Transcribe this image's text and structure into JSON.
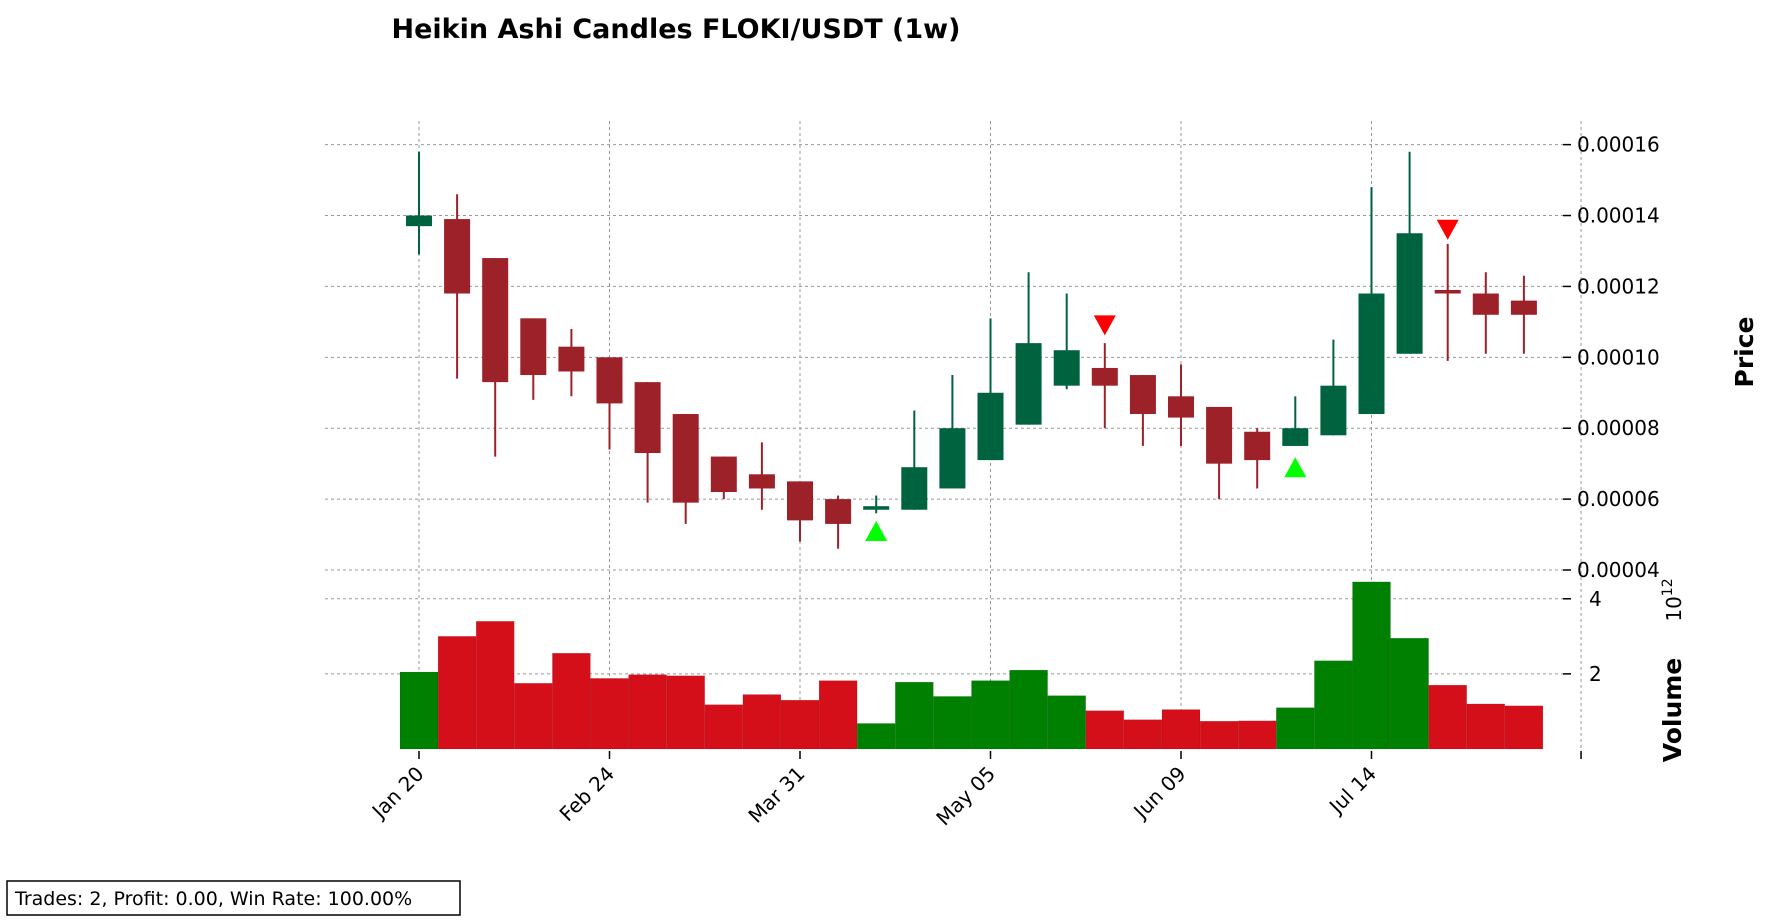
{
  "chart_data": {
    "type": "candlestick",
    "title": "Heikin Ashi Candles FLOKI/USDT (1w)",
    "price_label": "Price",
    "volume_label": "Volume",
    "volume_exponent": "10",
    "volume_exponent_power": "12",
    "x_ticks": [
      "Jan 20",
      "Feb 24",
      "Mar 31",
      "May 05",
      "Jun 09",
      "Jul 14"
    ],
    "x_tick_index": [
      0,
      5,
      10,
      15,
      20,
      25
    ],
    "price_ticks": [
      "0.00004",
      "0.00006",
      "0.00008",
      "0.00010",
      "0.00012",
      "0.00014",
      "0.00016"
    ],
    "price_ylim": [
      4e-05,
      0.000163
    ],
    "volume_ticks": [
      "2",
      "4"
    ],
    "volume_ylim": [
      0,
      4.5
    ],
    "grid": true,
    "colors": {
      "up": "#006340",
      "down": "#9c2129",
      "volume_up": "#008000",
      "volume_down": "#d40f1a",
      "buy_marker": "#00ff00",
      "sell_marker": "#ff0000"
    },
    "candles": [
      {
        "o": 0.000137,
        "h": 0.000158,
        "l": 0.000129,
        "c": 0.00014,
        "v": 2.05
      },
      {
        "o": 0.000139,
        "h": 0.000146,
        "l": 9.4e-05,
        "c": 0.000118,
        "v": 3.0
      },
      {
        "o": 0.000128,
        "h": 0.000128,
        "l": 7.2e-05,
        "c": 9.3e-05,
        "v": 3.4
      },
      {
        "o": 0.000111,
        "h": 0.000111,
        "l": 8.8e-05,
        "c": 9.5e-05,
        "v": 1.75
      },
      {
        "o": 0.000103,
        "h": 0.000108,
        "l": 8.9e-05,
        "c": 9.6e-05,
        "v": 2.55
      },
      {
        "o": 0.0001,
        "h": 0.0001,
        "l": 7.4e-05,
        "c": 8.7e-05,
        "v": 1.88
      },
      {
        "o": 9.3e-05,
        "h": 9.3e-05,
        "l": 5.9e-05,
        "c": 7.3e-05,
        "v": 1.98
      },
      {
        "o": 8.4e-05,
        "h": 8.4e-05,
        "l": 5.3e-05,
        "c": 5.9e-05,
        "v": 1.95
      },
      {
        "o": 7.2e-05,
        "h": 7.2e-05,
        "l": 6e-05,
        "c": 6.2e-05,
        "v": 1.18
      },
      {
        "o": 6.7e-05,
        "h": 7.6e-05,
        "l": 5.7e-05,
        "c": 6.3e-05,
        "v": 1.45
      },
      {
        "o": 6.5e-05,
        "h": 6.5e-05,
        "l": 4.8e-05,
        "c": 5.4e-05,
        "v": 1.3
      },
      {
        "o": 6e-05,
        "h": 6.1e-05,
        "l": 4.6e-05,
        "c": 5.3e-05,
        "v": 1.82
      },
      {
        "o": 5.7e-05,
        "h": 6.1e-05,
        "l": 5.6e-05,
        "c": 5.8e-05,
        "v": 0.68
      },
      {
        "o": 5.7e-05,
        "h": 8.5e-05,
        "l": 5.7e-05,
        "c": 6.9e-05,
        "v": 1.78
      },
      {
        "o": 6.3e-05,
        "h": 9.5e-05,
        "l": 6.3e-05,
        "c": 8e-05,
        "v": 1.4
      },
      {
        "o": 7.1e-05,
        "h": 0.000111,
        "l": 7.1e-05,
        "c": 9e-05,
        "v": 1.82
      },
      {
        "o": 8.1e-05,
        "h": 0.000124,
        "l": 8.1e-05,
        "c": 0.000104,
        "v": 2.1
      },
      {
        "o": 9.2e-05,
        "h": 0.000118,
        "l": 9.1e-05,
        "c": 0.000102,
        "v": 1.42
      },
      {
        "o": 9.7e-05,
        "h": 0.000104,
        "l": 8e-05,
        "c": 9.2e-05,
        "v": 1.02
      },
      {
        "o": 9.5e-05,
        "h": 9.5e-05,
        "l": 7.5e-05,
        "c": 8.4e-05,
        "v": 0.78
      },
      {
        "o": 8.9e-05,
        "h": 9.8e-05,
        "l": 7.5e-05,
        "c": 8.3e-05,
        "v": 1.05
      },
      {
        "o": 8.6e-05,
        "h": 8.6e-05,
        "l": 6e-05,
        "c": 7e-05,
        "v": 0.74
      },
      {
        "o": 7.9e-05,
        "h": 8e-05,
        "l": 6.3e-05,
        "c": 7.1e-05,
        "v": 0.75
      },
      {
        "o": 7.5e-05,
        "h": 8.9e-05,
        "l": 7.5e-05,
        "c": 8e-05,
        "v": 1.1
      },
      {
        "o": 7.8e-05,
        "h": 0.000105,
        "l": 7.8e-05,
        "c": 9.2e-05,
        "v": 2.35
      },
      {
        "o": 8.4e-05,
        "h": 0.000148,
        "l": 8.4e-05,
        "c": 0.000118,
        "v": 4.45
      },
      {
        "o": 0.000101,
        "h": 0.000158,
        "l": 0.000101,
        "c": 0.000135,
        "v": 2.95
      },
      {
        "o": 0.000119,
        "h": 0.000132,
        "l": 9.9e-05,
        "c": 0.000118,
        "v": 1.7
      },
      {
        "o": 0.000118,
        "h": 0.000124,
        "l": 0.000101,
        "c": 0.000112,
        "v": 1.2
      },
      {
        "o": 0.000116,
        "h": 0.000123,
        "l": 0.000101,
        "c": 0.000112,
        "v": 1.15
      }
    ],
    "buy_markers": [
      {
        "index": 12,
        "price": 5.1e-05
      },
      {
        "index": 23,
        "price": 6.9e-05
      }
    ],
    "sell_markers": [
      {
        "index": 18,
        "price": 0.000109
      },
      {
        "index": 27,
        "price": 0.000136
      }
    ]
  },
  "stats_text": "Trades: 2, Profit: 0.00, Win Rate: 100.00%"
}
